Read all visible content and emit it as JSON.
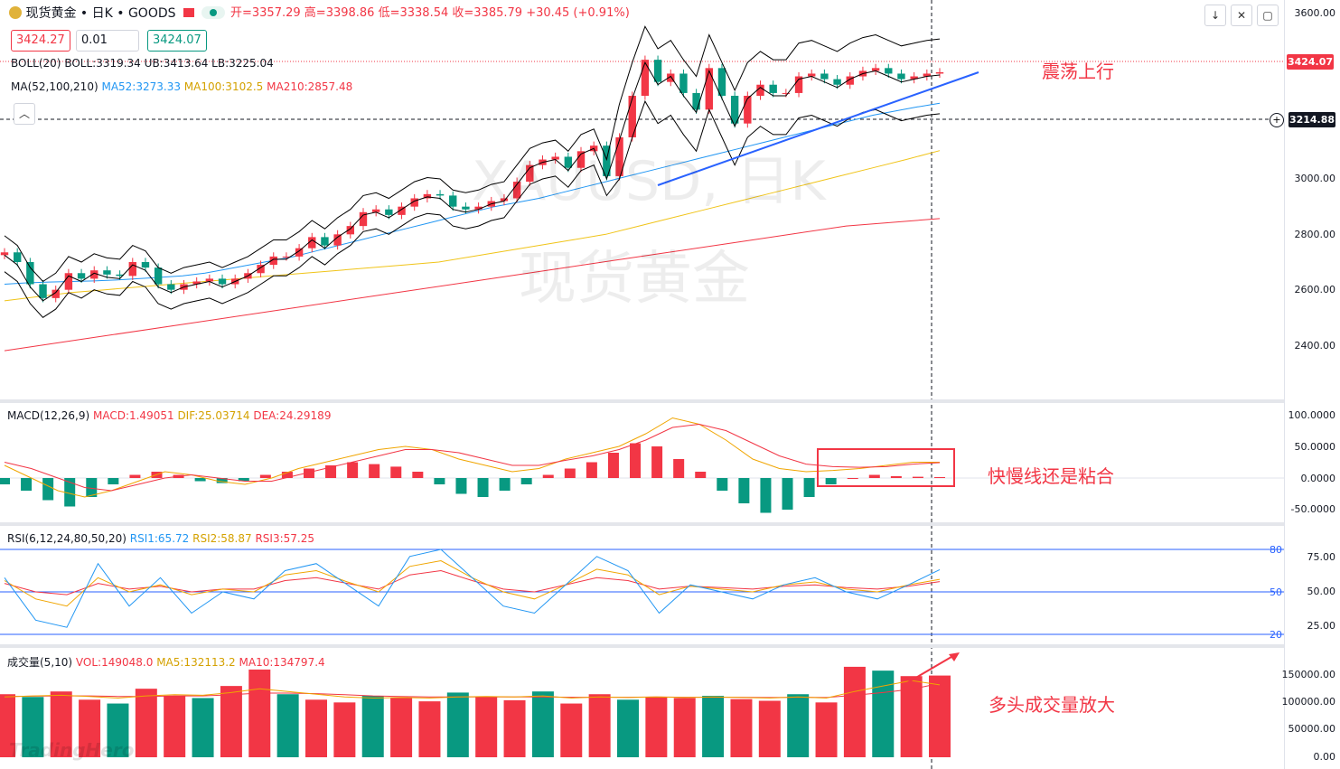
{
  "header": {
    "symbol": "现货黄金 • 日K • GOODS",
    "open": "开=3357.29",
    "high": "高=3398.86",
    "low": "低=3338.54",
    "close": "收=3385.79",
    "change": "+30.45 (+0.91%)",
    "sell_price": "3424.27",
    "lot": "0.01",
    "buy_price": "3424.07",
    "boll": "BOLL(20)",
    "boll_mid": "BOLL:3319.34",
    "boll_ub": "UB:3413.64",
    "boll_lb": "LB:3225.04",
    "ma": "MA(52,100,210)",
    "ma52": "MA52:3273.33",
    "ma100": "MA100:3102.5",
    "ma210": "MA210:2857.48"
  },
  "macd_legend": {
    "name": "MACD(12,26,9)",
    "macd": "MACD:1.49051",
    "dif": "DIF:25.03714",
    "dea": "DEA:24.29189"
  },
  "rsi_legend": {
    "name": "RSI(6,12,24,80,50,20)",
    "rsi1": "RSI1:65.72",
    "rsi2": "RSI2:58.87",
    "rsi3": "RSI3:57.25"
  },
  "vol_legend": {
    "name": "成交量(5,10)",
    "vol": "VOL:149048.0",
    "ma5": "MA5:132113.2",
    "ma10": "MA10:134797.4"
  },
  "axis": {
    "price_ticks": [
      "3600.00",
      "3424.07",
      "3214.88",
      "3000.00",
      "2800.00",
      "2600.00",
      "2400.00"
    ],
    "macd_ticks": [
      "100.0000",
      "50.0000",
      "0.0000",
      "-50.0000"
    ],
    "rsi_ticks": [
      "75.00",
      "50.00",
      "25.00"
    ],
    "rsi_levels": [
      "80",
      "50",
      "20"
    ],
    "vol_ticks": [
      "150000.00",
      "100000.00",
      "50000.00",
      "0.00"
    ]
  },
  "watermark": {
    "line1": "XAUUSD, 日K",
    "line2": "现货黄金",
    "brand": "TradingHero"
  },
  "annotations": {
    "price": "震荡上行",
    "macd": "快慢线还是粘合",
    "volume": "多头成交量放大"
  },
  "colors": {
    "up": "#f23645",
    "down": "#089981",
    "ma52": "#2196f3",
    "ma100": "#f0c419",
    "ma210": "#f23645",
    "boll": "#000000",
    "trend": "#2962ff",
    "annot": "#f23645"
  },
  "chart_data": [
    {
      "type": "line",
      "title": "现货黄金 日K",
      "ylim": [
        2300,
        3650
      ],
      "series": [
        {
          "name": "Close",
          "values": [
            2735,
            2700,
            2620,
            2570,
            2600,
            2660,
            2640,
            2670,
            2655,
            2650,
            2700,
            2680,
            2620,
            2600,
            2620,
            2630,
            2640,
            2620,
            2640,
            2660,
            2690,
            2720,
            2720,
            2750,
            2790,
            2760,
            2800,
            2830,
            2880,
            2890,
            2870,
            2900,
            2930,
            2945,
            2940,
            2900,
            2890,
            2900,
            2920,
            2930,
            2990,
            3050,
            3070,
            3080,
            3040,
            3100,
            3120,
            3010,
            3150,
            3300,
            3430,
            3350,
            3380,
            3310,
            3250,
            3400,
            3300,
            3200,
            3300,
            3340,
            3310,
            3310,
            3370,
            3380,
            3360,
            3340,
            3370,
            3390,
            3400,
            3380,
            3360,
            3370,
            3380,
            3385
          ]
        },
        {
          "name": "MA52",
          "values": [
            2620,
            2625,
            2628,
            2630,
            2632,
            2635,
            2640,
            2645,
            2650,
            2660,
            2675,
            2690,
            2705,
            2720,
            2740,
            2760,
            2780,
            2800,
            2820,
            2840,
            2860,
            2880,
            2900,
            2915,
            2930,
            2950,
            2970,
            2990,
            3010,
            3030,
            3050,
            3070,
            3090,
            3110,
            3130,
            3150,
            3170,
            3190,
            3210,
            3230,
            3245,
            3260,
            3273
          ]
        },
        {
          "name": "MA100",
          "values": [
            2560,
            2575,
            2590,
            2600,
            2610,
            2620,
            2630,
            2640,
            2650,
            2660,
            2670,
            2680,
            2690,
            2700,
            2720,
            2740,
            2760,
            2780,
            2800,
            2830,
            2860,
            2890,
            2920,
            2950,
            2980,
            3010,
            3040,
            3070,
            3102
          ]
        },
        {
          "name": "MA210",
          "values": [
            2380,
            2430,
            2480,
            2530,
            2580,
            2630,
            2680,
            2730,
            2780,
            2830,
            2857
          ]
        }
      ]
    },
    {
      "type": "bar",
      "title": "MACD(12,26,9)",
      "ylim": [
        -60,
        110
      ],
      "series": [
        {
          "name": "MACD",
          "values": [
            -10,
            -20,
            -35,
            -45,
            -30,
            -10,
            5,
            10,
            5,
            -5,
            -8,
            -5,
            5,
            10,
            15,
            20,
            25,
            22,
            18,
            10,
            -10,
            -25,
            -30,
            -20,
            -10,
            5,
            15,
            25,
            40,
            55,
            50,
            30,
            10,
            -20,
            -40,
            -55,
            -50,
            -30,
            -10,
            0,
            5,
            3,
            2,
            1.49
          ]
        },
        {
          "name": "DIF",
          "values": [
            20,
            0,
            -20,
            -30,
            -20,
            -5,
            10,
            5,
            -5,
            -10,
            0,
            15,
            25,
            35,
            45,
            50,
            45,
            30,
            20,
            10,
            15,
            30,
            40,
            50,
            70,
            95,
            85,
            60,
            30,
            15,
            10,
            12,
            15,
            20,
            25,
            25.04
          ]
        },
        {
          "name": "DEA",
          "values": [
            25,
            15,
            0,
            -15,
            -20,
            -10,
            0,
            5,
            0,
            -5,
            -5,
            5,
            15,
            25,
            35,
            45,
            45,
            40,
            30,
            20,
            20,
            28,
            35,
            45,
            60,
            80,
            85,
            75,
            55,
            35,
            22,
            18,
            17,
            18,
            22,
            24.29
          ]
        }
      ]
    },
    {
      "type": "line",
      "title": "RSI(6,12,24,80,50,20)",
      "ylim": [
        15,
        85
      ],
      "series": [
        {
          "name": "RSI1",
          "values": [
            60,
            30,
            25,
            70,
            40,
            60,
            35,
            50,
            45,
            65,
            70,
            55,
            40,
            75,
            80,
            60,
            40,
            35,
            55,
            75,
            65,
            35,
            55,
            50,
            45,
            55,
            60,
            50,
            45,
            55,
            65.72
          ]
        },
        {
          "name": "RSI2",
          "values": [
            58,
            45,
            40,
            60,
            50,
            55,
            48,
            52,
            50,
            62,
            65,
            57,
            50,
            68,
            72,
            60,
            50,
            45,
            55,
            66,
            62,
            48,
            54,
            52,
            50,
            55,
            57,
            52,
            50,
            55,
            58.87
          ]
        },
        {
          "name": "RSI3",
          "values": [
            56,
            50,
            48,
            56,
            52,
            54,
            50,
            52,
            52,
            58,
            60,
            56,
            52,
            62,
            65,
            58,
            52,
            50,
            55,
            60,
            58,
            52,
            54,
            53,
            52,
            54,
            55,
            53,
            52,
            54,
            57.25
          ]
        }
      ]
    },
    {
      "type": "bar",
      "title": "成交量(5,10)",
      "ylim": [
        0,
        170000
      ],
      "series": [
        {
          "name": "VOL",
          "values": [
            115000,
            110000,
            120000,
            105000,
            98000,
            125000,
            112000,
            108000,
            130000,
            160000,
            115000,
            105000,
            100000,
            112000,
            108000,
            102000,
            118000,
            110000,
            104000,
            120000,
            98000,
            115000,
            105000,
            110000,
            108000,
            112000,
            106000,
            103000,
            115000,
            100000,
            165000,
            158000,
            148000,
            149048
          ]
        },
        {
          "name": "MA5",
          "values": [
            110000,
            112000,
            113000,
            111000,
            108000,
            112000,
            114000,
            113000,
            118000,
            125000,
            120000,
            115000,
            110000,
            108000,
            109000,
            108000,
            110000,
            111000,
            110000,
            112000,
            108000,
            110000,
            109000,
            110000,
            109000,
            110000,
            109000,
            108000,
            110000,
            108000,
            120000,
            130000,
            140000,
            132113.2
          ]
        },
        {
          "name": "MA10",
          "values": [
            111000,
            111500,
            112000,
            112000,
            111000,
            111000,
            112000,
            112000,
            114000,
            117000,
            117000,
            116000,
            114000,
            112000,
            111000,
            110000,
            110000,
            110000,
            110000,
            110000,
            109500,
            109500,
            109500,
            110000,
            109500,
            109500,
            109500,
            109000,
            109500,
            109000,
            113000,
            118000,
            124000,
            134797.4
          ]
        }
      ]
    }
  ]
}
